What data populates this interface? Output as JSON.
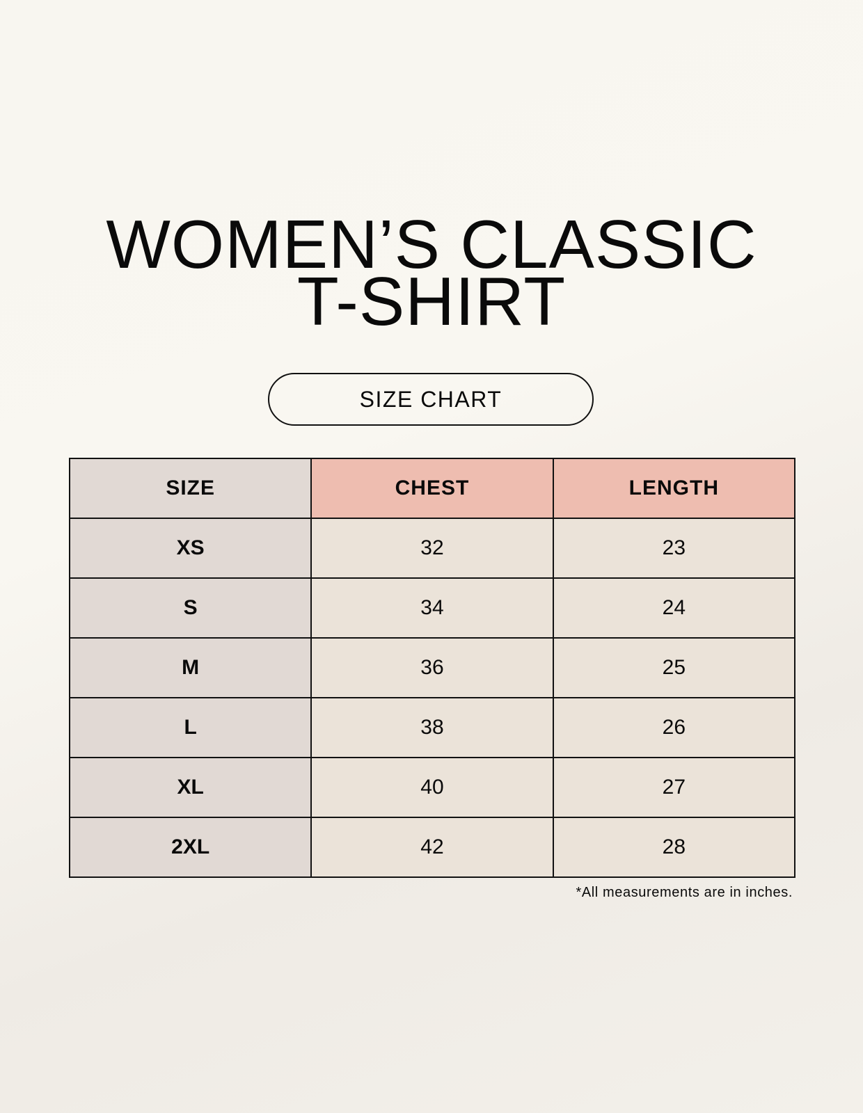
{
  "title": {
    "line1": "WOMEN’S CLASSIC",
    "line2": "T-SHIRT"
  },
  "subtitle": "SIZE CHART",
  "table": {
    "headers": [
      "SIZE",
      "CHEST",
      "LENGTH"
    ],
    "rows": [
      [
        "XS",
        "32",
        "23"
      ],
      [
        "S",
        "34",
        "24"
      ],
      [
        "M",
        "36",
        "25"
      ],
      [
        "L",
        "38",
        "26"
      ],
      [
        "XL",
        "40",
        "27"
      ],
      [
        "2XL",
        "42",
        "28"
      ]
    ]
  },
  "footnote": "*All measurements are in inches.",
  "colors": {
    "size_column": "#e1d9d4",
    "header_highlight": "#eebdb0",
    "value_cells": "#ebe3d9"
  }
}
